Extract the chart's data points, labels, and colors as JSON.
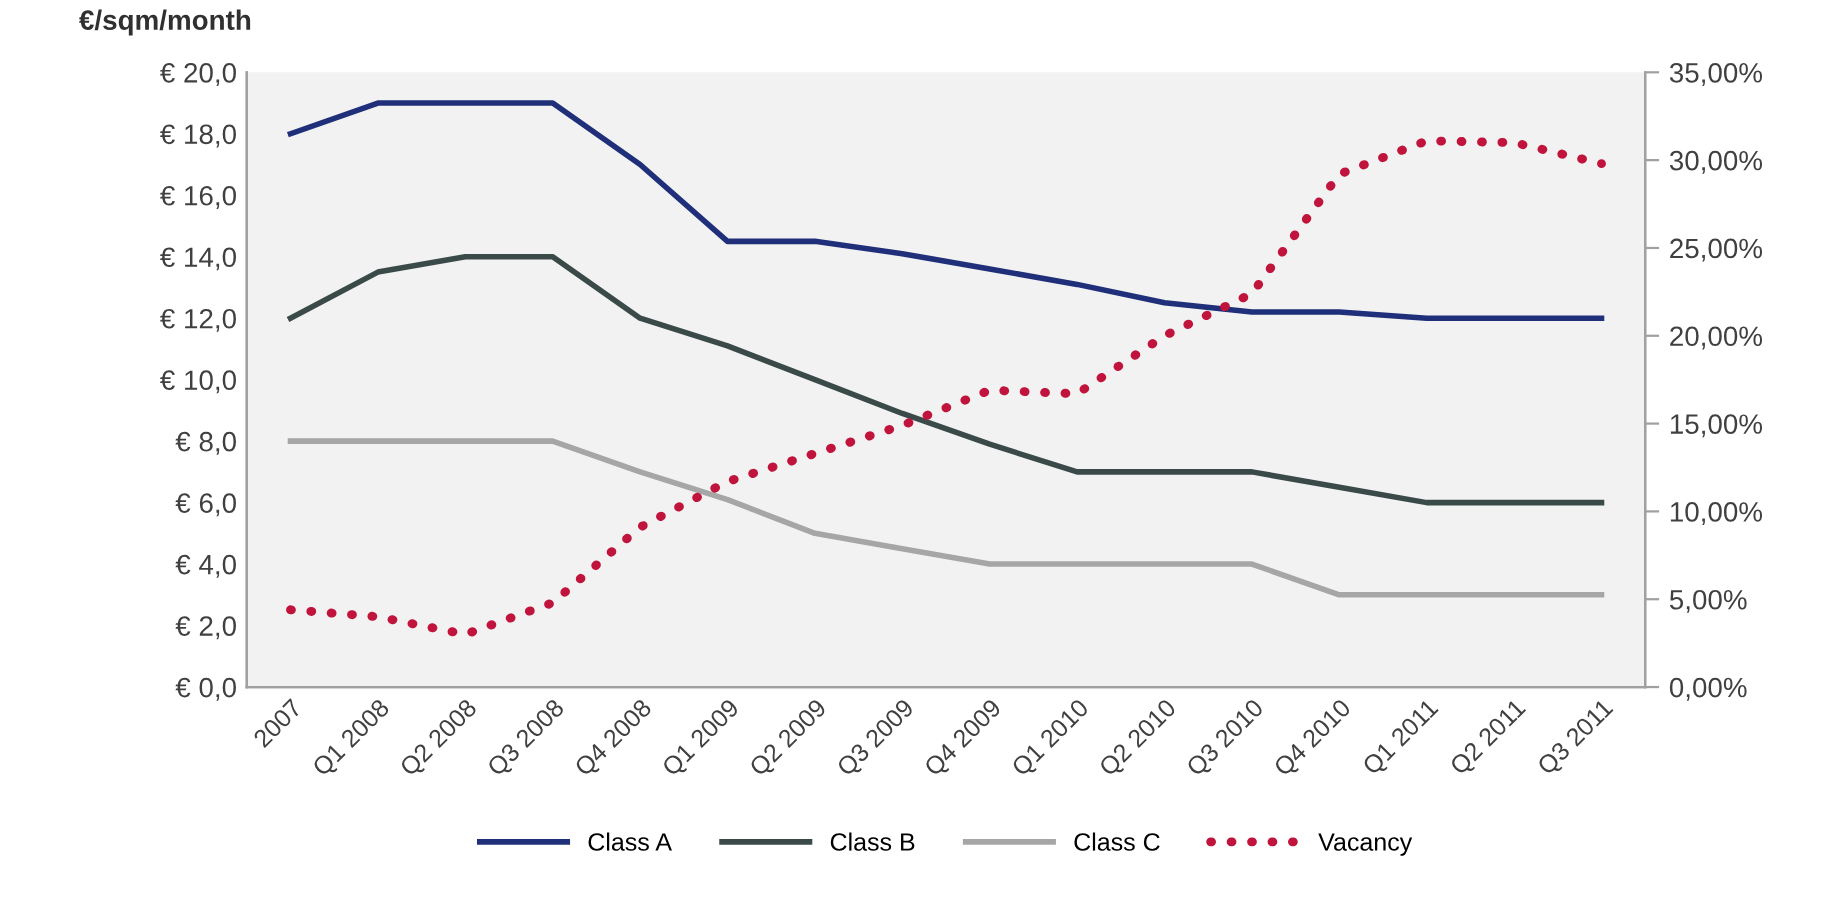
{
  "chart_data": {
    "type": "line",
    "ylabel": "€/sqm/month",
    "categories": [
      "2007",
      "Q1 2008",
      "Q2 2008",
      "Q3 2008",
      "Q4 2008",
      "Q1 2009",
      "Q2 2009",
      "Q3 2009",
      "Q4 2009",
      "Q1 2010",
      "Q2 2010",
      "Q3 2010",
      "Q4 2010",
      "Q1 2011",
      "Q2 2011",
      "Q3 2011"
    ],
    "series": [
      {
        "name": "Class A",
        "color": "#1f2f7a",
        "line_style": "solid",
        "values": [
          18,
          19,
          19,
          19,
          17,
          14.5,
          14.5,
          14.1,
          13.6,
          13.1,
          12.5,
          12.2,
          12.2,
          12,
          12,
          12
        ]
      },
      {
        "name": "Class B",
        "color": "#3a4a48",
        "line_style": "solid",
        "values": [
          12,
          13.5,
          14,
          14,
          12,
          11.1,
          10,
          8.9,
          7.9,
          7,
          7,
          7,
          6.5,
          6,
          6,
          6
        ]
      },
      {
        "name": "Class C",
        "color": "#a6a6a6",
        "line_style": "solid",
        "values": [
          8,
          8,
          8,
          8,
          7,
          6.1,
          5,
          4.5,
          4,
          4,
          4,
          4,
          3,
          3,
          3,
          3
        ]
      },
      {
        "name": "Vacancy",
        "color": "#c0143c",
        "line_style": "dotted",
        "axis": "y2",
        "values": [
          4.4,
          4,
          3,
          4.8,
          9.1,
          11.7,
          13.3,
          14.9,
          16.9,
          16.7,
          20,
          22.4,
          29.2,
          31.1,
          31,
          29.8
        ]
      }
    ],
    "ylim": [
      0,
      20
    ],
    "yticks": [
      {
        "value": 0,
        "label": "€ 0,0"
      },
      {
        "value": 2,
        "label": "€ 2,0"
      },
      {
        "value": 4,
        "label": "€ 4,0"
      },
      {
        "value": 6,
        "label": "€ 6,0"
      },
      {
        "value": 8,
        "label": "€ 8,0"
      },
      {
        "value": 10,
        "label": "€ 10,0"
      },
      {
        "value": 12,
        "label": "€ 12,0"
      },
      {
        "value": 14,
        "label": "€ 14,0"
      },
      {
        "value": 16,
        "label": "€ 16,0"
      },
      {
        "value": 18,
        "label": "€ 18,0"
      },
      {
        "value": 20,
        "label": "€ 20,0"
      }
    ],
    "y2lim": [
      0,
      35
    ],
    "y2ticks": [
      {
        "value": 0,
        "label": "0,00%"
      },
      {
        "value": 5,
        "label": "5,00%"
      },
      {
        "value": 10,
        "label": "10,00%"
      },
      {
        "value": 15,
        "label": "15,00%"
      },
      {
        "value": 20,
        "label": "20,00%"
      },
      {
        "value": 25,
        "label": "25,00%"
      },
      {
        "value": 30,
        "label": "30,00%"
      },
      {
        "value": 35,
        "label": "35,00%"
      }
    ],
    "grid": false,
    "legend": "bottom"
  }
}
